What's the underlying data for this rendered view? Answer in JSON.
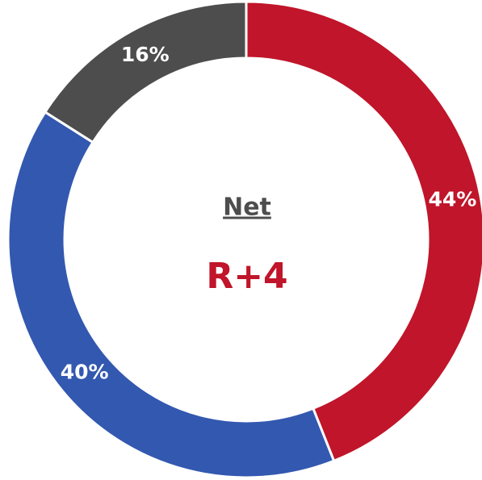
{
  "chart_data": {
    "type": "donut",
    "values": [
      44,
      40,
      16
    ],
    "value_labels": [
      "44%",
      "40%",
      "16%"
    ],
    "colors": [
      "#c0152a",
      "#3358b0",
      "#4d4d4d"
    ],
    "annotations": [
      "Net",
      "R+4"
    ]
  }
}
